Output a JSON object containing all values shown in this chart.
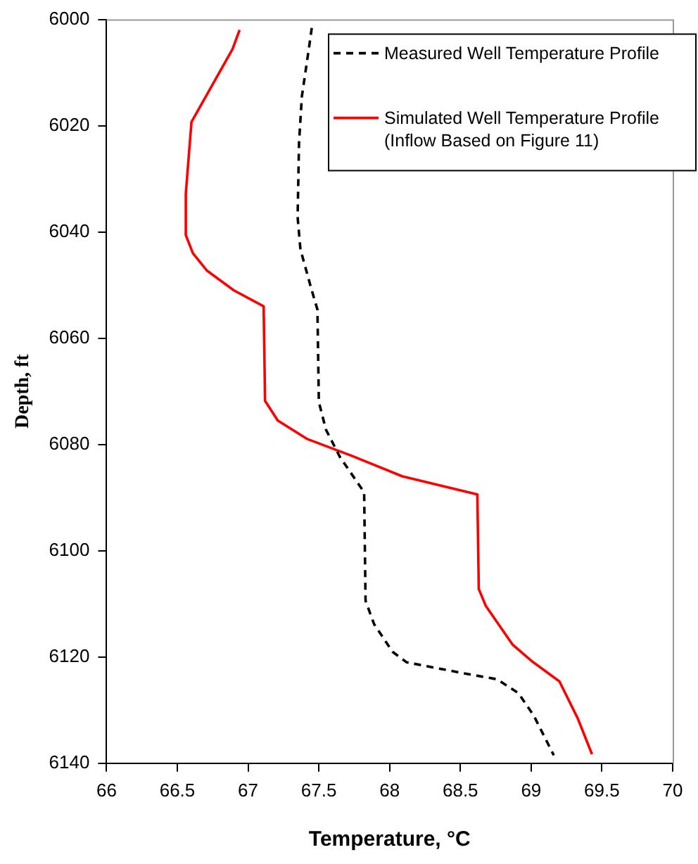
{
  "chart_data": {
    "type": "line",
    "xlabel": "Temperature, °C",
    "ylabel": "Depth, ft",
    "xlim": [
      66,
      70
    ],
    "xticks": [
      66,
      66.5,
      67,
      67.5,
      68,
      68.5,
      69,
      69.5,
      70
    ],
    "ylim": [
      6140,
      6000
    ],
    "yticks": [
      6000,
      6020,
      6040,
      6060,
      6080,
      6100,
      6120,
      6140
    ],
    "grid": false,
    "legend": "top right",
    "marker": "none",
    "series": [
      {
        "name": "Measured Well Temperature Profile",
        "color": "#000000",
        "line_style": "dashed",
        "x": [
          67.45,
          67.43,
          67.38,
          67.36,
          67.35,
          67.37,
          67.45,
          67.49,
          67.5,
          67.55,
          67.65,
          67.82,
          67.83,
          67.89,
          68.02,
          68.12,
          68.49,
          68.76,
          68.91,
          69.02,
          69.16
        ],
        "values": [
          6001.6,
          6005.4,
          6014.5,
          6023.2,
          6037.2,
          6043.3,
          6051,
          6054.6,
          6072,
          6077.2,
          6082.4,
          6089,
          6109.4,
          6113.8,
          6119,
          6121,
          6122.9,
          6124.2,
          6126.8,
          6131.1,
          6138.5
        ]
      },
      {
        "name": "Simulated Well Temperature Profile (Inflow Based on Figure 11)",
        "color": "#ff0000",
        "line_style": "solid",
        "x": [
          66.94,
          66.89,
          66.6,
          66.56,
          66.56,
          66.61,
          66.71,
          66.9,
          67.11,
          67.12,
          67.21,
          67.42,
          67.72,
          68.09,
          68.62,
          68.63,
          68.68,
          68.87,
          69.01,
          69.2,
          69.33,
          69.43
        ],
        "values": [
          6002,
          6005.6,
          6019.3,
          6032.8,
          6040.6,
          6044,
          6047.3,
          6051,
          6054,
          6071.8,
          6075.5,
          6079,
          6082,
          6086,
          6089.4,
          6107.2,
          6110.4,
          6117.7,
          6120.9,
          6124.6,
          6131.6,
          6138.3
        ]
      }
    ]
  }
}
